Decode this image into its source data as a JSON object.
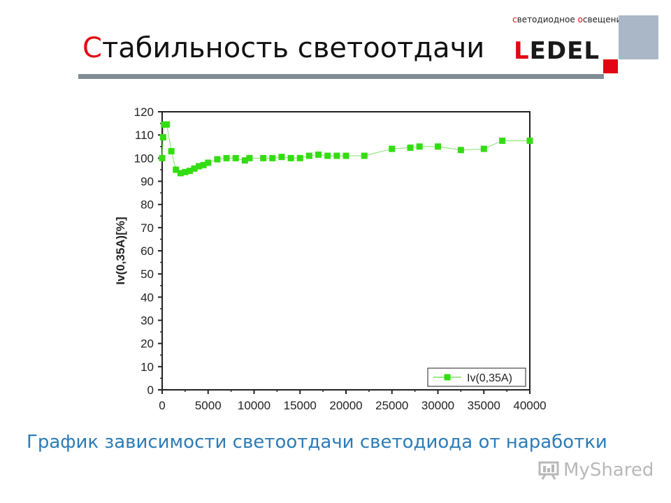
{
  "slide": {
    "title": "Стабильность светоотдачи",
    "caption": "График зависимости светоотдачи светодиода от наработки"
  },
  "logo": {
    "tagline": "светодиодное освещение",
    "wordmark": "LEDEL",
    "accent_color": "#e30613",
    "square_color": "#a9b7c6"
  },
  "watermark": {
    "text": "MyShared",
    "icon": "board-icon"
  },
  "chart_data": {
    "type": "line",
    "title": "",
    "xlabel": "",
    "ylabel": "Iv(0,35A)[%]",
    "xlim": [
      0,
      40000
    ],
    "ylim": [
      0,
      120
    ],
    "xticks": [
      0,
      5000,
      10000,
      15000,
      20000,
      25000,
      30000,
      35000,
      40000
    ],
    "yticks": [
      0,
      10,
      20,
      30,
      40,
      50,
      60,
      70,
      80,
      90,
      100,
      110,
      120
    ],
    "grid": false,
    "legend_position": "bottom-right",
    "series": [
      {
        "name": "Iv(0,35A)",
        "color": "#33dd11",
        "marker": "square",
        "x": [
          0,
          100,
          200,
          500,
          1000,
          1500,
          2000,
          2500,
          3000,
          3500,
          4000,
          4500,
          5000,
          6000,
          7000,
          8000,
          9000,
          9500,
          11000,
          12000,
          13000,
          14000,
          15000,
          16000,
          17000,
          18000,
          19000,
          20000,
          22000,
          25000,
          27000,
          28000,
          30000,
          32500,
          35000,
          37000,
          40000
        ],
        "y": [
          100,
          109,
          114.5,
          114.5,
          103,
          95,
          93.5,
          94,
          94.5,
          95.5,
          96.5,
          97,
          98,
          99.5,
          100,
          100,
          99,
          100,
          100,
          100,
          100.5,
          100,
          100,
          101,
          101.5,
          101,
          101,
          101,
          101,
          104,
          104.5,
          105,
          105,
          103.5,
          104,
          107.5,
          107.5
        ]
      }
    ]
  }
}
